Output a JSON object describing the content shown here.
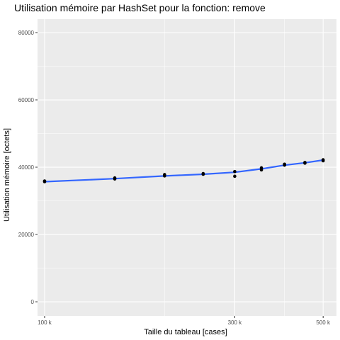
{
  "chart_data": {
    "type": "scatter",
    "title": "Utilisation mémoire par HashSet pour la fonction: remove",
    "xlabel": "Taille du tableau [cases]",
    "ylabel": "Utilisation mémoire [octets]",
    "x_scale": "log10",
    "xlim": [
      96000,
      540000
    ],
    "ylim": [
      -4200,
      84000
    ],
    "x_ticks": [
      100000,
      300000,
      500000
    ],
    "x_tick_labels": [
      "100 k",
      "300 k",
      "500 k"
    ],
    "x_minor_gridlines": [
      200000,
      400000
    ],
    "y_ticks": [
      0,
      20000,
      40000,
      60000,
      80000
    ],
    "y_tick_labels": [
      "0",
      "20000",
      "40000",
      "60000",
      "80000"
    ],
    "grid": true,
    "points": [
      {
        "x": 100000,
        "y": 35700
      },
      {
        "x": 100000,
        "y": 35900
      },
      {
        "x": 150000,
        "y": 36500
      },
      {
        "x": 150000,
        "y": 36800
      },
      {
        "x": 200000,
        "y": 37400
      },
      {
        "x": 200000,
        "y": 37800
      },
      {
        "x": 250000,
        "y": 37900
      },
      {
        "x": 250000,
        "y": 38100
      },
      {
        "x": 300000,
        "y": 37300
      },
      {
        "x": 300000,
        "y": 38700
      },
      {
        "x": 350000,
        "y": 39200
      },
      {
        "x": 350000,
        "y": 39800
      },
      {
        "x": 400000,
        "y": 40600
      },
      {
        "x": 400000,
        "y": 40900
      },
      {
        "x": 450000,
        "y": 41200
      },
      {
        "x": 450000,
        "y": 41400
      },
      {
        "x": 500000,
        "y": 41900
      },
      {
        "x": 500000,
        "y": 42200
      }
    ],
    "smooth_line": {
      "x": [
        100000,
        150000,
        200000,
        250000,
        300000,
        350000,
        400000,
        450000,
        500000
      ],
      "y": [
        35700,
        36600,
        37400,
        37900,
        38500,
        39500,
        40600,
        41300,
        42100
      ]
    },
    "colors": {
      "panel": "#ebebeb",
      "grid": "#ffffff",
      "points": "#000000",
      "line": "#3366ff"
    }
  }
}
